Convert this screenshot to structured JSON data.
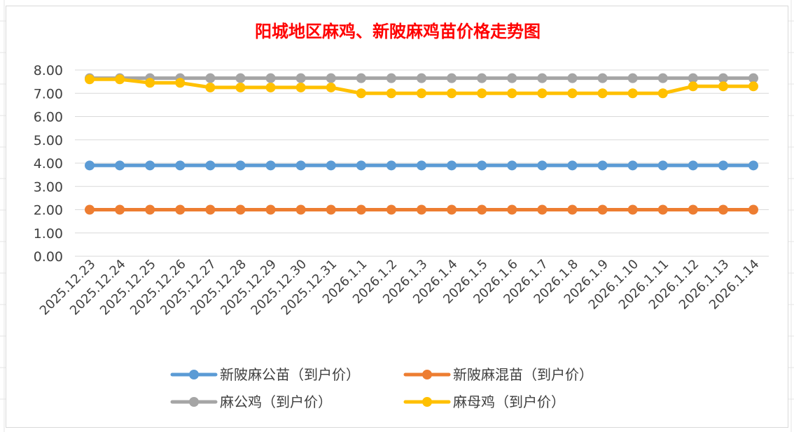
{
  "chart_data": {
    "type": "line",
    "title": "阳城地区麻鸡、新陂麻鸡苗价格走势图",
    "xlabel": "",
    "ylabel": "",
    "ylim": [
      0,
      8
    ],
    "yticks": [
      "0.00",
      "1.00",
      "2.00",
      "3.00",
      "4.00",
      "5.00",
      "6.00",
      "7.00",
      "8.00"
    ],
    "grid": true,
    "legend_position": "bottom",
    "categories": [
      "2025.12.23",
      "2025.12.24",
      "2025.12.25",
      "2025.12.26",
      "2025.12.27",
      "2025.12.28",
      "2025.12.29",
      "2025.12.30",
      "2025.12.31",
      "2026.1.1",
      "2026.1.2",
      "2026.1.3",
      "2026.1.4",
      "2026.1.5",
      "2026.1.6",
      "2026.1.7",
      "2026.1.8",
      "2026.1.9",
      "2026.1.10",
      "2026.1.11",
      "2026.1.12",
      "2026.1.13",
      "2026.1.14"
    ],
    "series": [
      {
        "name": "新陂麻公苗（到户价）",
        "color": "#5b9bd5",
        "values": [
          3.9,
          3.9,
          3.9,
          3.9,
          3.9,
          3.9,
          3.9,
          3.9,
          3.9,
          3.9,
          3.9,
          3.9,
          3.9,
          3.9,
          3.9,
          3.9,
          3.9,
          3.9,
          3.9,
          3.9,
          3.9,
          3.9,
          3.9
        ]
      },
      {
        "name": "新陂麻混苗（到户价）",
        "color": "#ed7d31",
        "values": [
          2.0,
          2.0,
          2.0,
          2.0,
          2.0,
          2.0,
          2.0,
          2.0,
          2.0,
          2.0,
          2.0,
          2.0,
          2.0,
          2.0,
          2.0,
          2.0,
          2.0,
          2.0,
          2.0,
          2.0,
          2.0,
          2.0,
          2.0
        ]
      },
      {
        "name": "麻公鸡（到户价）",
        "color": "#a5a5a5",
        "values": [
          7.65,
          7.65,
          7.65,
          7.65,
          7.65,
          7.65,
          7.65,
          7.65,
          7.65,
          7.65,
          7.65,
          7.65,
          7.65,
          7.65,
          7.65,
          7.65,
          7.65,
          7.65,
          7.65,
          7.65,
          7.65,
          7.65,
          7.65
        ]
      },
      {
        "name": "麻母鸡（到户价）",
        "color": "#ffc000",
        "values": [
          7.6,
          7.6,
          7.45,
          7.45,
          7.25,
          7.25,
          7.25,
          7.25,
          7.25,
          7.0,
          7.0,
          7.0,
          7.0,
          7.0,
          7.0,
          7.0,
          7.0,
          7.0,
          7.0,
          7.0,
          7.3,
          7.3,
          7.3
        ]
      }
    ]
  }
}
